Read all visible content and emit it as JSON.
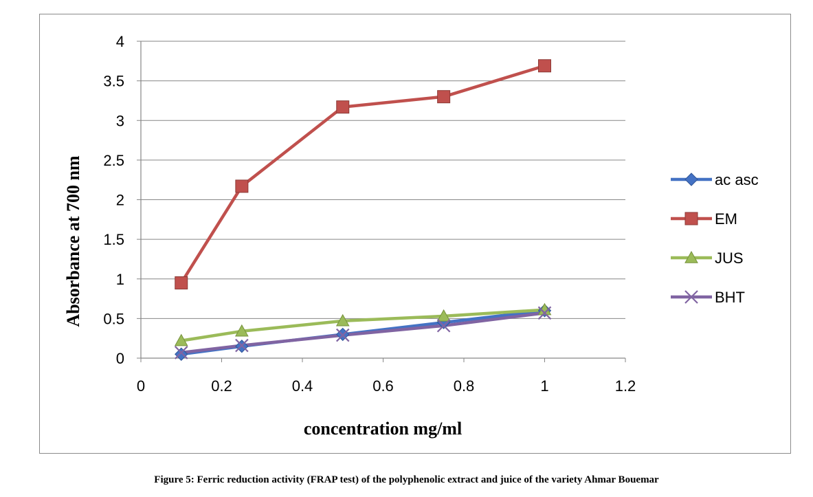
{
  "caption": "Figure 5: Ferric reduction activity (FRAP test) of the polyphenolic extract and juice of the variety Ahmar Bouemar",
  "chart_data": {
    "type": "line",
    "xlabel": "concentration mg/ml",
    "ylabel": "Absorbance at  700 nm",
    "xlim": [
      0,
      1.2
    ],
    "ylim": [
      0,
      4
    ],
    "xticks": [
      "0",
      "0.2",
      "0.4",
      "0.6",
      "0.8",
      "1",
      "1.2"
    ],
    "yticks": [
      "0",
      "0.5",
      "1",
      "1.5",
      "2",
      "2.5",
      "3",
      "3.5",
      "4"
    ],
    "grid": "horizontal",
    "legend_position": "right",
    "x": [
      0.1,
      0.25,
      0.5,
      0.75,
      1
    ],
    "series": [
      {
        "name": "ac asc",
        "marker": "diamond",
        "color": "#4472C4",
        "values": [
          0.05,
          0.15,
          0.3,
          0.45,
          0.6
        ]
      },
      {
        "name": "EM",
        "marker": "square",
        "color": "#C0504D",
        "values": [
          0.95,
          2.17,
          3.17,
          3.3,
          3.69
        ]
      },
      {
        "name": "JUS",
        "marker": "triangle",
        "color": "#9BBB59",
        "values": [
          0.22,
          0.34,
          0.47,
          0.53,
          0.61
        ]
      },
      {
        "name": "BHT",
        "marker": "x",
        "color": "#8064A2",
        "values": [
          0.07,
          0.16,
          0.29,
          0.41,
          0.57
        ]
      }
    ]
  }
}
